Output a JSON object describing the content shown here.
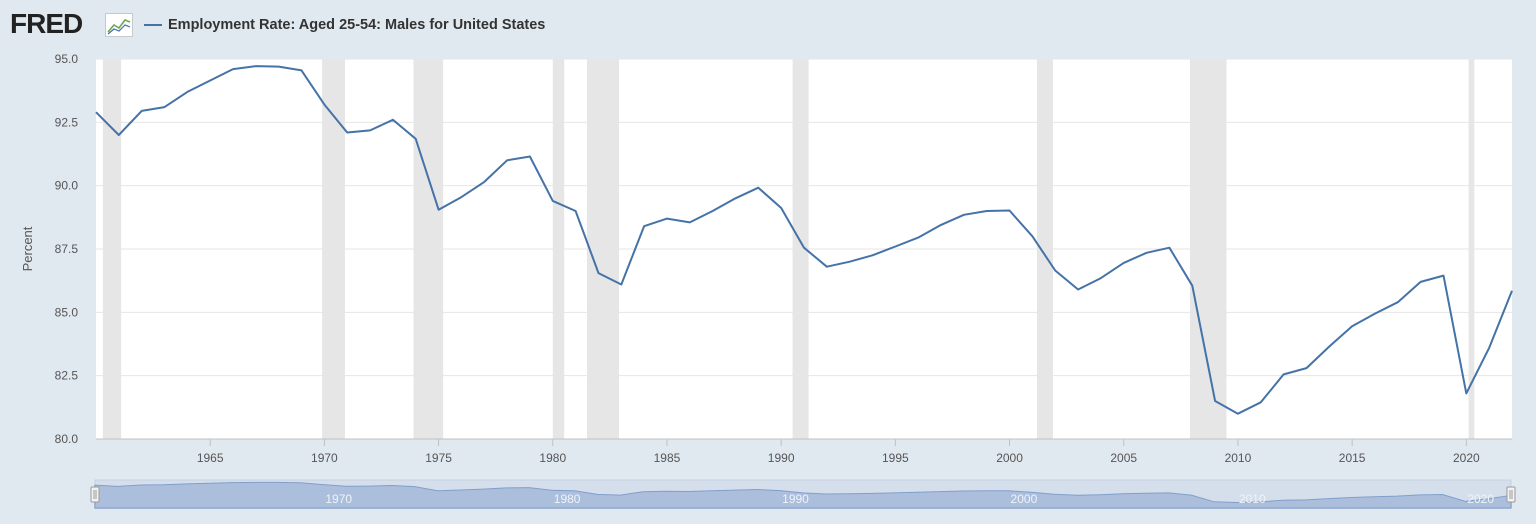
{
  "header": {
    "logo_text": "FRED",
    "logo_icon": "line-chart-icon",
    "legend_label": "Employment Rate: Aged 25-54: Males for United States"
  },
  "colors": {
    "series_line": "#4572a7",
    "recession_band": "#e6e6e6",
    "background": "#e1e9f0",
    "plot_background": "#ffffff",
    "navigator_fill": "#8aa6d0",
    "navigator_mask": "#c3d1e6"
  },
  "chart_data": {
    "type": "line",
    "title": "",
    "ylabel": "Percent",
    "xlabel": "",
    "ylim": [
      80.0,
      95.0
    ],
    "xlim": [
      1960,
      2022
    ],
    "yticks": [
      "80.0",
      "82.5",
      "85.0",
      "87.5",
      "90.0",
      "92.5",
      "95.0"
    ],
    "xticks": [
      "1965",
      "1970",
      "1975",
      "1980",
      "1985",
      "1990",
      "1995",
      "2000",
      "2005",
      "2010",
      "2015",
      "2020"
    ],
    "navigator_ticks": [
      "1970",
      "1980",
      "1990",
      "2000",
      "2010",
      "2020"
    ],
    "grid": "horizontal",
    "series": [
      {
        "name": "Employment Rate: Aged 25-54: Males for United States",
        "x": [
          1960,
          1961,
          1962,
          1963,
          1964,
          1965,
          1966,
          1967,
          1968,
          1969,
          1970,
          1971,
          1972,
          1973,
          1974,
          1975,
          1976,
          1977,
          1978,
          1979,
          1980,
          1981,
          1982,
          1983,
          1984,
          1985,
          1986,
          1987,
          1988,
          1989,
          1990,
          1991,
          1992,
          1993,
          1994,
          1995,
          1996,
          1997,
          1998,
          1999,
          2000,
          2001,
          2002,
          2003,
          2004,
          2005,
          2006,
          2007,
          2008,
          2009,
          2010,
          2011,
          2012,
          2013,
          2014,
          2015,
          2016,
          2017,
          2018,
          2019,
          2020,
          2021,
          2022
        ],
        "y": [
          92.9,
          92.0,
          92.95,
          93.1,
          93.7,
          94.15,
          94.6,
          94.72,
          94.7,
          94.55,
          93.2,
          92.1,
          92.18,
          92.6,
          91.85,
          89.05,
          89.55,
          90.15,
          91.0,
          91.15,
          89.4,
          89.0,
          86.55,
          86.1,
          88.4,
          88.7,
          88.55,
          89.0,
          89.5,
          89.92,
          89.12,
          87.55,
          86.8,
          87.0,
          87.25,
          87.6,
          87.95,
          88.45,
          88.85,
          89.0,
          89.02,
          88.0,
          86.65,
          85.9,
          86.35,
          86.95,
          87.35,
          87.55,
          86.05,
          81.5,
          81.0,
          81.45,
          82.55,
          82.8,
          83.65,
          84.45,
          84.95,
          85.4,
          86.2,
          86.45,
          81.8,
          83.6,
          85.85
        ]
      }
    ],
    "recessions": [
      [
        1960.3,
        1961.1
      ],
      [
        1969.9,
        1970.9
      ],
      [
        1973.9,
        1975.2
      ],
      [
        1980.0,
        1980.5
      ],
      [
        1981.5,
        1982.9
      ],
      [
        1990.5,
        1991.2
      ],
      [
        2001.2,
        2001.9
      ],
      [
        2007.9,
        2009.5
      ],
      [
        2020.1,
        2020.35
      ]
    ]
  }
}
